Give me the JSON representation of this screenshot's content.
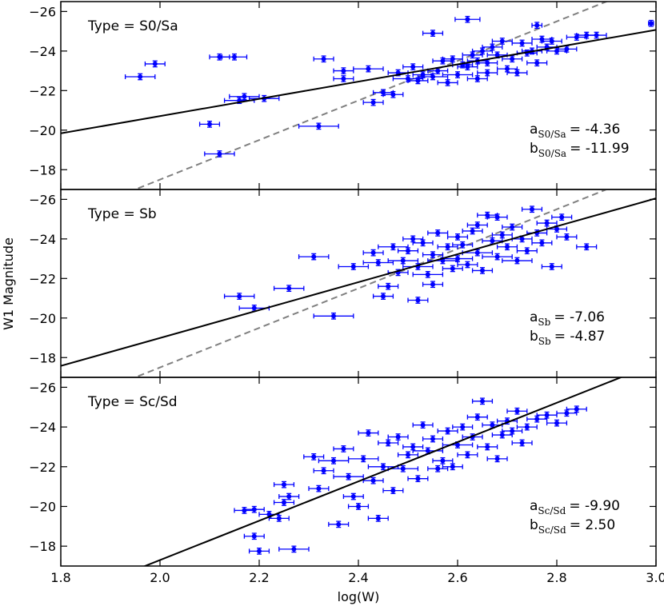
{
  "chart_data": {
    "type": "scatter",
    "xlabel": "log(W)",
    "ylabel": "W1 Magnitude",
    "xlim": [
      1.8,
      3.0
    ],
    "ylim": [
      -17,
      -26.5
    ],
    "x_ticks": [
      1.8,
      2.0,
      2.2,
      2.4,
      2.6,
      2.8,
      3.0
    ],
    "x_tick_labels": [
      "1.8",
      "2.0",
      "2.2",
      "2.4",
      "2.6",
      "2.8",
      "3.0"
    ],
    "y_ticks": [
      -18,
      -20,
      -22,
      -24,
      -26
    ],
    "y_tick_labels": [
      "−18",
      "−20",
      "−22",
      "−24",
      "−26"
    ],
    "marker_color": "#0000ff",
    "fit_color": "#000000",
    "reference_color": "#808080",
    "panels": [
      {
        "type_label": "Type = S0/Sa",
        "coef_a_label": "a",
        "coef_a_sub": "S0/Sa",
        "coef_a_value": "=  -4.36",
        "coef_b_label": "b",
        "coef_b_sub": "S0/Sa",
        "coef_b_value": "= -11.99",
        "slope": -4.36,
        "intercept": -11.99,
        "reference_line": true,
        "points": [
          [
            1.96,
            -22.7,
            0.03,
            0.15
          ],
          [
            1.99,
            -23.35,
            0.02,
            0.15
          ],
          [
            2.12,
            -23.7,
            0.02,
            0.15
          ],
          [
            2.15,
            -23.7,
            0.025,
            0.15
          ],
          [
            2.1,
            -20.3,
            0.02,
            0.15
          ],
          [
            2.12,
            -18.8,
            0.03,
            0.15
          ],
          [
            2.17,
            -21.7,
            0.03,
            0.15
          ],
          [
            2.16,
            -21.5,
            0.03,
            0.15
          ],
          [
            2.21,
            -21.6,
            0.03,
            0.15
          ],
          [
            2.32,
            -20.2,
            0.04,
            0.15
          ],
          [
            2.33,
            -23.6,
            0.02,
            0.15
          ],
          [
            2.37,
            -23.0,
            0.02,
            0.15
          ],
          [
            2.37,
            -22.6,
            0.02,
            0.15
          ],
          [
            2.42,
            -23.1,
            0.03,
            0.15
          ],
          [
            2.43,
            -21.4,
            0.02,
            0.15
          ],
          [
            2.45,
            -21.9,
            0.02,
            0.15
          ],
          [
            2.47,
            -21.8,
            0.02,
            0.15
          ],
          [
            2.48,
            -22.9,
            0.02,
            0.15
          ],
          [
            2.5,
            -22.6,
            0.03,
            0.15
          ],
          [
            2.51,
            -23.2,
            0.02,
            0.15
          ],
          [
            2.52,
            -22.5,
            0.02,
            0.15
          ],
          [
            2.53,
            -22.8,
            0.02,
            0.15
          ],
          [
            2.55,
            -24.9,
            0.02,
            0.15
          ],
          [
            2.55,
            -22.7,
            0.03,
            0.15
          ],
          [
            2.56,
            -23.0,
            0.02,
            0.15
          ],
          [
            2.57,
            -23.5,
            0.02,
            0.15
          ],
          [
            2.58,
            -22.4,
            0.02,
            0.15
          ],
          [
            2.59,
            -23.6,
            0.02,
            0.15
          ],
          [
            2.6,
            -22.8,
            0.03,
            0.15
          ],
          [
            2.61,
            -23.3,
            0.02,
            0.15
          ],
          [
            2.62,
            -25.6,
            0.025,
            0.15
          ],
          [
            2.62,
            -23.2,
            0.02,
            0.15
          ],
          [
            2.63,
            -23.8,
            0.02,
            0.15
          ],
          [
            2.64,
            -22.6,
            0.02,
            0.15
          ],
          [
            2.64,
            -23.5,
            0.02,
            0.15
          ],
          [
            2.65,
            -24.0,
            0.02,
            0.15
          ],
          [
            2.66,
            -22.9,
            0.02,
            0.15
          ],
          [
            2.66,
            -23.4,
            0.02,
            0.15
          ],
          [
            2.67,
            -24.2,
            0.02,
            0.15
          ],
          [
            2.68,
            -23.8,
            0.02,
            0.15
          ],
          [
            2.69,
            -24.5,
            0.02,
            0.15
          ],
          [
            2.7,
            -23.1,
            0.02,
            0.15
          ],
          [
            2.71,
            -23.6,
            0.02,
            0.15
          ],
          [
            2.72,
            -22.9,
            0.02,
            0.15
          ],
          [
            2.73,
            -24.4,
            0.02,
            0.15
          ],
          [
            2.74,
            -23.9,
            0.02,
            0.15
          ],
          [
            2.75,
            -24.0,
            0.02,
            0.15
          ],
          [
            2.76,
            -23.4,
            0.02,
            0.15
          ],
          [
            2.76,
            -25.3,
            0.01,
            0.15
          ],
          [
            2.77,
            -24.6,
            0.02,
            0.15
          ],
          [
            2.78,
            -24.2,
            0.02,
            0.15
          ],
          [
            2.79,
            -24.5,
            0.02,
            0.15
          ],
          [
            2.8,
            -24.0,
            0.02,
            0.15
          ],
          [
            2.82,
            -24.1,
            0.02,
            0.15
          ],
          [
            2.84,
            -24.7,
            0.02,
            0.15
          ],
          [
            2.86,
            -24.8,
            0.02,
            0.15
          ],
          [
            2.88,
            -24.8,
            0.02,
            0.15
          ],
          [
            2.99,
            -25.4,
            0.005,
            0.15
          ]
        ]
      },
      {
        "type_label": "Type = Sb",
        "coef_a_label": "a",
        "coef_a_sub": "Sb",
        "coef_a_value": "=  -7.06",
        "coef_b_label": "b",
        "coef_b_sub": "Sb",
        "coef_b_value": "=  -4.87",
        "slope": -7.06,
        "intercept": -4.87,
        "reference_line": true,
        "points": [
          [
            2.16,
            -21.1,
            0.03,
            0.15
          ],
          [
            2.19,
            -20.5,
            0.03,
            0.15
          ],
          [
            2.26,
            -21.5,
            0.03,
            0.15
          ],
          [
            2.31,
            -23.1,
            0.03,
            0.15
          ],
          [
            2.35,
            -20.1,
            0.04,
            0.15
          ],
          [
            2.39,
            -22.6,
            0.03,
            0.15
          ],
          [
            2.43,
            -23.3,
            0.02,
            0.15
          ],
          [
            2.44,
            -22.8,
            0.03,
            0.15
          ],
          [
            2.45,
            -21.1,
            0.02,
            0.15
          ],
          [
            2.46,
            -21.6,
            0.02,
            0.15
          ],
          [
            2.47,
            -23.6,
            0.03,
            0.15
          ],
          [
            2.48,
            -22.3,
            0.02,
            0.15
          ],
          [
            2.49,
            -22.9,
            0.03,
            0.15
          ],
          [
            2.5,
            -23.4,
            0.02,
            0.15
          ],
          [
            2.51,
            -24.0,
            0.02,
            0.15
          ],
          [
            2.52,
            -20.9,
            0.02,
            0.15
          ],
          [
            2.52,
            -22.6,
            0.03,
            0.15
          ],
          [
            2.53,
            -23.8,
            0.02,
            0.15
          ],
          [
            2.54,
            -22.2,
            0.03,
            0.15
          ],
          [
            2.55,
            -21.7,
            0.02,
            0.15
          ],
          [
            2.55,
            -23.2,
            0.02,
            0.15
          ],
          [
            2.56,
            -24.3,
            0.02,
            0.15
          ],
          [
            2.57,
            -22.9,
            0.03,
            0.15
          ],
          [
            2.58,
            -23.6,
            0.02,
            0.15
          ],
          [
            2.59,
            -22.5,
            0.02,
            0.15
          ],
          [
            2.6,
            -24.1,
            0.02,
            0.15
          ],
          [
            2.6,
            -23.0,
            0.03,
            0.15
          ],
          [
            2.61,
            -23.7,
            0.02,
            0.15
          ],
          [
            2.62,
            -22.7,
            0.02,
            0.15
          ],
          [
            2.63,
            -24.4,
            0.02,
            0.15
          ],
          [
            2.64,
            -23.3,
            0.03,
            0.15
          ],
          [
            2.64,
            -24.7,
            0.02,
            0.15
          ],
          [
            2.65,
            -22.4,
            0.02,
            0.15
          ],
          [
            2.66,
            -25.2,
            0.02,
            0.15
          ],
          [
            2.67,
            -23.9,
            0.02,
            0.15
          ],
          [
            2.68,
            -25.1,
            0.02,
            0.15
          ],
          [
            2.68,
            -23.1,
            0.03,
            0.15
          ],
          [
            2.69,
            -24.2,
            0.02,
            0.15
          ],
          [
            2.7,
            -23.6,
            0.02,
            0.15
          ],
          [
            2.71,
            -24.6,
            0.02,
            0.15
          ],
          [
            2.72,
            -22.9,
            0.03,
            0.15
          ],
          [
            2.73,
            -24.0,
            0.02,
            0.15
          ],
          [
            2.74,
            -23.4,
            0.02,
            0.15
          ],
          [
            2.75,
            -25.5,
            0.02,
            0.15
          ],
          [
            2.76,
            -24.3,
            0.02,
            0.15
          ],
          [
            2.77,
            -23.8,
            0.02,
            0.15
          ],
          [
            2.78,
            -24.8,
            0.02,
            0.15
          ],
          [
            2.79,
            -22.6,
            0.02,
            0.15
          ],
          [
            2.8,
            -24.5,
            0.02,
            0.15
          ],
          [
            2.81,
            -25.1,
            0.02,
            0.15
          ],
          [
            2.82,
            -24.1,
            0.02,
            0.15
          ],
          [
            2.86,
            -23.6,
            0.02,
            0.15
          ]
        ]
      },
      {
        "type_label": "Type = Sc/Sd",
        "coef_a_label": "a",
        "coef_a_sub": "Sc/Sd",
        "coef_a_value": "=  -9.90",
        "coef_b_label": "b",
        "coef_b_sub": "Sc/Sd",
        "coef_b_value": "=   2.50",
        "slope": -9.9,
        "intercept": 2.5,
        "reference_line": false,
        "points": [
          [
            2.17,
            -19.8,
            0.02,
            0.15
          ],
          [
            2.19,
            -19.85,
            0.02,
            0.15
          ],
          [
            2.19,
            -18.5,
            0.02,
            0.15
          ],
          [
            2.2,
            -17.75,
            0.02,
            0.15
          ],
          [
            2.22,
            -19.6,
            0.02,
            0.15
          ],
          [
            2.24,
            -19.4,
            0.02,
            0.15
          ],
          [
            2.25,
            -21.1,
            0.02,
            0.15
          ],
          [
            2.25,
            -20.2,
            0.02,
            0.15
          ],
          [
            2.26,
            -20.5,
            0.02,
            0.15
          ],
          [
            2.27,
            -17.85,
            0.03,
            0.15
          ],
          [
            2.31,
            -22.5,
            0.02,
            0.15
          ],
          [
            2.32,
            -20.9,
            0.02,
            0.15
          ],
          [
            2.33,
            -21.8,
            0.02,
            0.15
          ],
          [
            2.35,
            -22.3,
            0.03,
            0.15
          ],
          [
            2.36,
            -19.1,
            0.02,
            0.15
          ],
          [
            2.37,
            -22.9,
            0.02,
            0.15
          ],
          [
            2.38,
            -21.5,
            0.03,
            0.15
          ],
          [
            2.39,
            -20.5,
            0.02,
            0.15
          ],
          [
            2.4,
            -20.0,
            0.02,
            0.15
          ],
          [
            2.41,
            -22.4,
            0.03,
            0.15
          ],
          [
            2.42,
            -23.7,
            0.02,
            0.15
          ],
          [
            2.43,
            -21.3,
            0.02,
            0.15
          ],
          [
            2.44,
            -19.4,
            0.02,
            0.15
          ],
          [
            2.45,
            -22.0,
            0.03,
            0.15
          ],
          [
            2.46,
            -23.2,
            0.02,
            0.15
          ],
          [
            2.47,
            -20.8,
            0.02,
            0.15
          ],
          [
            2.48,
            -23.5,
            0.02,
            0.15
          ],
          [
            2.49,
            -21.9,
            0.03,
            0.15
          ],
          [
            2.5,
            -22.6,
            0.02,
            0.15
          ],
          [
            2.51,
            -23.0,
            0.02,
            0.15
          ],
          [
            2.52,
            -21.4,
            0.02,
            0.15
          ],
          [
            2.53,
            -24.1,
            0.02,
            0.15
          ],
          [
            2.54,
            -22.8,
            0.03,
            0.15
          ],
          [
            2.55,
            -23.4,
            0.02,
            0.15
          ],
          [
            2.56,
            -21.9,
            0.02,
            0.15
          ],
          [
            2.57,
            -22.3,
            0.02,
            0.15
          ],
          [
            2.58,
            -23.8,
            0.02,
            0.15
          ],
          [
            2.59,
            -22.0,
            0.02,
            0.15
          ],
          [
            2.6,
            -23.1,
            0.03,
            0.15
          ],
          [
            2.61,
            -24.0,
            0.02,
            0.15
          ],
          [
            2.62,
            -22.6,
            0.02,
            0.15
          ],
          [
            2.63,
            -23.5,
            0.02,
            0.15
          ],
          [
            2.64,
            -24.5,
            0.02,
            0.15
          ],
          [
            2.65,
            -25.3,
            0.02,
            0.15
          ],
          [
            2.66,
            -23.0,
            0.02,
            0.15
          ],
          [
            2.67,
            -24.1,
            0.02,
            0.15
          ],
          [
            2.68,
            -22.4,
            0.02,
            0.15
          ],
          [
            2.69,
            -23.6,
            0.02,
            0.15
          ],
          [
            2.7,
            -24.3,
            0.02,
            0.15
          ],
          [
            2.71,
            -23.8,
            0.02,
            0.15
          ],
          [
            2.72,
            -24.8,
            0.02,
            0.15
          ],
          [
            2.73,
            -23.2,
            0.02,
            0.15
          ],
          [
            2.74,
            -24.0,
            0.02,
            0.15
          ],
          [
            2.76,
            -24.4,
            0.02,
            0.15
          ],
          [
            2.78,
            -24.6,
            0.02,
            0.15
          ],
          [
            2.8,
            -24.2,
            0.02,
            0.15
          ],
          [
            2.82,
            -24.7,
            0.02,
            0.15
          ],
          [
            2.84,
            -24.9,
            0.02,
            0.15
          ]
        ]
      }
    ]
  }
}
